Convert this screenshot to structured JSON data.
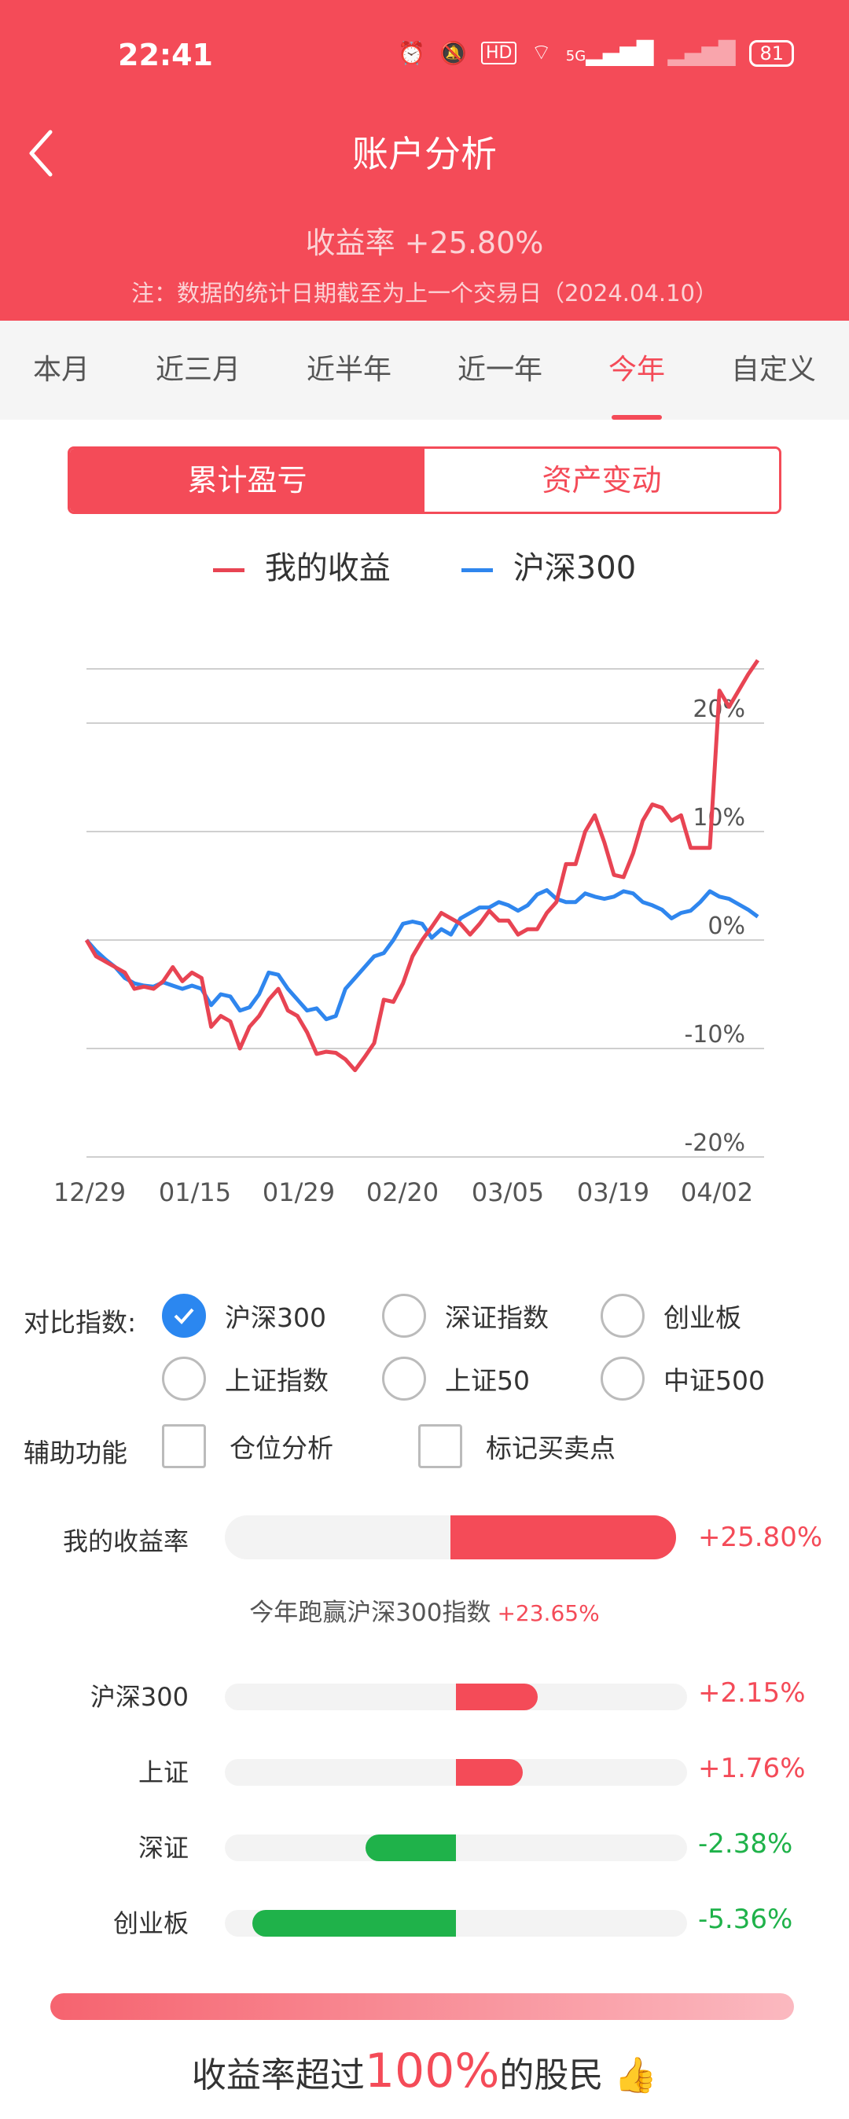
{
  "status_bar": {
    "time": "22:41",
    "network": "5G",
    "hd": "HD",
    "battery": "81"
  },
  "header": {
    "title": "账户分析",
    "return_text": "收益率 +25.80%",
    "note": "注：数据的统计日期截至为上一个交易日（2024.04.10）"
  },
  "period_tabs": [
    "本月",
    "近三月",
    "近半年",
    "近一年",
    "今年",
    "自定义"
  ],
  "active_period": "今年",
  "segment": {
    "left": "累计盈亏",
    "right": "资产变动"
  },
  "colors": {
    "brand": "#f44b58",
    "mine": "#e84453",
    "index": "#2f86ee",
    "up": "#f44b58",
    "down": "#1fb24a"
  },
  "chart_data": {
    "type": "line",
    "legend": [
      "我的收益",
      "沪深300"
    ],
    "ylim": [
      -20,
      25
    ],
    "y_ticks": [
      "20%",
      "10%",
      "0%",
      "-10%",
      "-20%"
    ],
    "x_ticks": [
      "12/29",
      "01/15",
      "01/29",
      "02/20",
      "03/05",
      "03/19",
      "04/02"
    ],
    "series": [
      {
        "name": "我的收益",
        "values": [
          0,
          -1.5,
          -2,
          -2.5,
          -3,
          -4.5,
          -4.3,
          -4.5,
          -3.8,
          -2.5,
          -3.8,
          -3,
          -3.5,
          -8,
          -7,
          -7.5,
          -10,
          -8,
          -7,
          -5.5,
          -4.5,
          -6.5,
          -7,
          -8.5,
          -10.5,
          -10.3,
          -10.4,
          -11,
          -12,
          -10.8,
          -9.5,
          -5.5,
          -5.7,
          -4,
          -1.5,
          0,
          1.2,
          2.5,
          2,
          1.5,
          0.5,
          1.5,
          2.7,
          1.8,
          1.8,
          0.5,
          1,
          1,
          2.5,
          3.5,
          7,
          7,
          10,
          11.5,
          9,
          6,
          5.8,
          8,
          11,
          12.5,
          12.2,
          11,
          11.5,
          8.5,
          8.5,
          8.5,
          23,
          21.5,
          23,
          24.5,
          25.8
        ]
      },
      {
        "name": "沪深300",
        "values": [
          0,
          -1,
          -1.8,
          -2.5,
          -3.5,
          -4,
          -4.2,
          -4.3,
          -3.9,
          -4.2,
          -4.5,
          -4.2,
          -4.5,
          -6,
          -5,
          -5.2,
          -6.5,
          -6.2,
          -5,
          -3,
          -3.2,
          -4.5,
          -5.5,
          -6.5,
          -6.3,
          -7.3,
          -7,
          -4.5,
          -3.5,
          -2.5,
          -1.5,
          -1.2,
          0,
          1.5,
          1.7,
          1.5,
          0.2,
          1,
          0.5,
          2,
          2.5,
          3,
          3,
          3.5,
          3.2,
          2.7,
          3.2,
          4.2,
          4.6,
          3.8,
          3.5,
          3.5,
          4.3,
          4,
          3.8,
          4,
          4.5,
          4.3,
          3.5,
          3.2,
          2.8,
          2,
          2.5,
          2.7,
          3.5,
          4.5,
          4,
          3.8,
          3.3,
          2.8,
          2.15
        ]
      }
    ]
  },
  "compare": {
    "label": "对比指数:",
    "options": [
      "沪深300",
      "深证指数",
      "创业板",
      "上证指数",
      "上证50",
      "中证500"
    ],
    "selected": "沪深300"
  },
  "aux": {
    "label": "辅助功能",
    "options": [
      "仓位分析",
      "标记买卖点"
    ]
  },
  "my_return": {
    "label": "我的收益率",
    "value": "+25.80%",
    "ratio": 0.258
  },
  "beat": {
    "text": "今年跑赢沪深300指数",
    "value": "+23.65%"
  },
  "index_returns": [
    {
      "name": "沪深300",
      "value": "+2.15%",
      "num": 2.15
    },
    {
      "name": "上证",
      "value": "+1.76%",
      "num": 1.76
    },
    {
      "name": "深证",
      "value": "-2.38%",
      "num": -2.38
    },
    {
      "name": "创业板",
      "value": "-5.36%",
      "num": -5.36
    }
  ],
  "summary": {
    "prefix": "收益率超过",
    "percent": "100%",
    "suffix": "的股民"
  }
}
